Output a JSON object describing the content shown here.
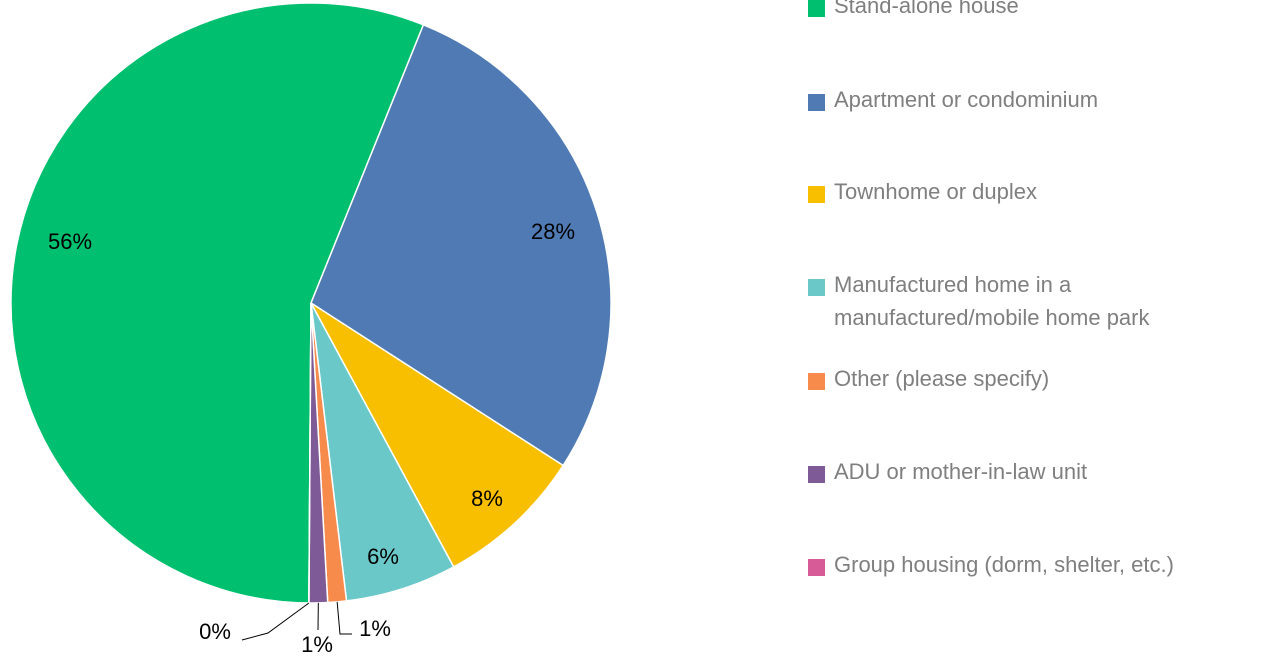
{
  "chart_data": {
    "type": "pie",
    "categories": [
      "Stand-alone house",
      "Apartment or condominium",
      "Townhome or duplex",
      "Manufactured home in a manufactured/mobile home park",
      "Other (please specify)",
      "ADU or mother-in-law unit",
      "Group housing (dorm, shelter, etc.)"
    ],
    "values": [
      56,
      28,
      8,
      6,
      1,
      1,
      0
    ],
    "value_labels": [
      "56%",
      "28%",
      "8%",
      "6%",
      "1%",
      "1%",
      "0%"
    ],
    "colors": [
      "#00bf6f",
      "#4f7ab3",
      "#f8be00",
      "#6ac8c8",
      "#f68b4c",
      "#7e5a96",
      "#d65b97"
    ],
    "legend": "right"
  }
}
